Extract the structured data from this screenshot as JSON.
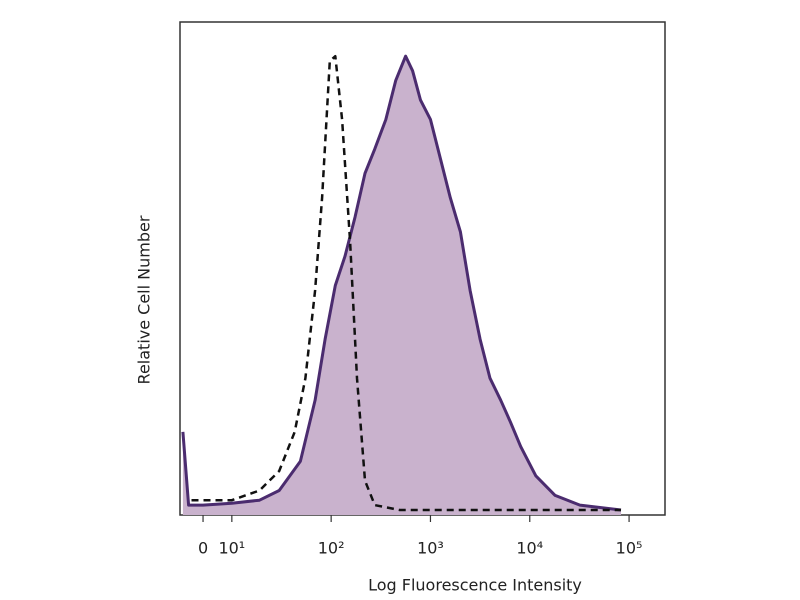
{
  "chart_data": {
    "type": "line",
    "xlabel": "Log Fluorescence Intensity",
    "ylabel": "Relative Cell Number",
    "xscale": "symlog",
    "linthresh": 10,
    "xlim": [
      -8,
      230000
    ],
    "ylim": [
      0,
      100
    ],
    "xticks": [
      {
        "value": 0,
        "label": "0"
      },
      {
        "value": 10,
        "label": "10¹"
      },
      {
        "value": 100,
        "label": "10²"
      },
      {
        "value": 1000,
        "label": "10³"
      },
      {
        "value": 10000,
        "label": "10⁴"
      },
      {
        "value": 100000,
        "label": "10⁵"
      }
    ],
    "series": [
      {
        "color": "#4b2c6f",
        "fill": "#c9b2cd",
        "dashed": false,
        "x": [
          -7,
          -5,
          0,
          10,
          19,
          30,
          49,
          69,
          87,
          110,
          138,
          174,
          219,
          275,
          355,
          447,
          562,
          661,
          794,
          1000,
          1260,
          1585,
          2000,
          2510,
          3160,
          3980,
          5100,
          6400,
          8100,
          11500,
          18000,
          32000,
          83000
        ],
        "y": [
          16,
          1,
          1,
          1.4,
          2,
          4,
          10,
          22.5,
          35,
          46,
          52,
          60,
          69,
          74,
          80,
          88,
          93,
          90,
          84,
          80,
          72,
          64,
          57,
          45,
          35,
          27,
          22.5,
          18,
          13,
          7,
          3,
          1,
          0
        ]
      },
      {
        "color": "#111111",
        "fill": null,
        "dashed": true,
        "x": [
          -4,
          10,
          19,
          30,
          43,
          55,
          69,
          81,
          97,
          110,
          129,
          155,
          182,
          219,
          275,
          490,
          83000
        ],
        "y": [
          2,
          2,
          4,
          8,
          16,
          27,
          45,
          64,
          92,
          93,
          80,
          55,
          27,
          6,
          1,
          0,
          0
        ]
      }
    ]
  }
}
